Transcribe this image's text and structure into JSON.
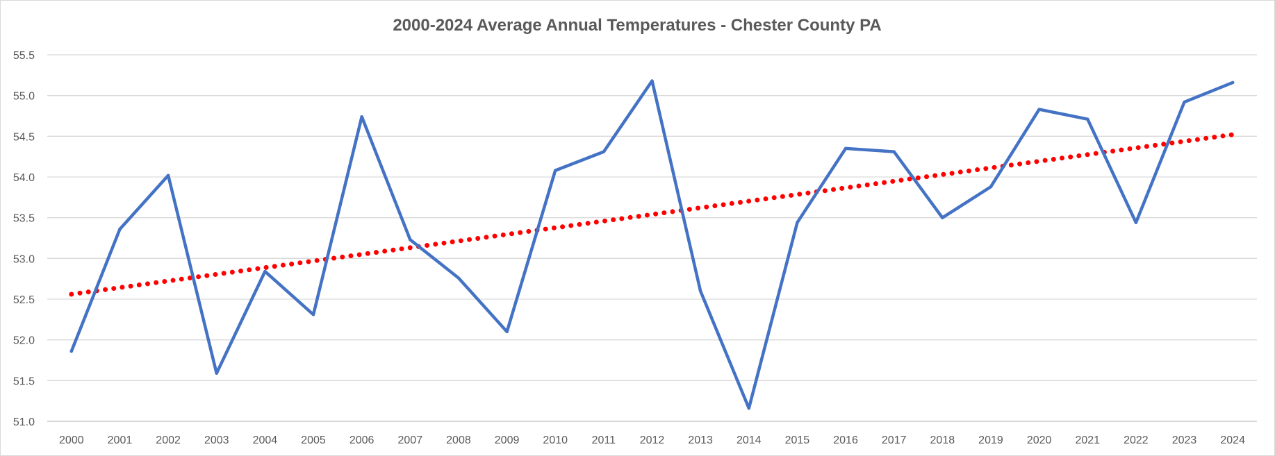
{
  "chart_data": {
    "type": "line",
    "title": "2000-2024 Average Annual Temperatures - Chester County PA",
    "xlabel": "",
    "ylabel": "",
    "categories": [
      "2000",
      "2001",
      "2002",
      "2003",
      "2004",
      "2005",
      "2006",
      "2007",
      "2008",
      "2009",
      "2010",
      "2011",
      "2012",
      "2013",
      "2014",
      "2015",
      "2016",
      "2017",
      "2018",
      "2019",
      "2020",
      "2021",
      "2022",
      "2023",
      "2024"
    ],
    "y_ticks": [
      "51.0",
      "51.5",
      "52.0",
      "52.5",
      "53.0",
      "53.5",
      "54.0",
      "54.5",
      "55.0",
      "55.5"
    ],
    "ylim": [
      51.0,
      55.5
    ],
    "grid": true,
    "legend": "none",
    "series": [
      {
        "style": "solid-line",
        "color": "#4472c4",
        "values": [
          51.86,
          53.36,
          54.02,
          51.59,
          52.84,
          52.31,
          54.74,
          53.23,
          52.76,
          52.1,
          54.08,
          54.31,
          55.18,
          52.6,
          51.16,
          53.44,
          54.35,
          54.31,
          53.5,
          53.88,
          54.83,
          54.71,
          53.44,
          54.92,
          55.16
        ]
      },
      {
        "style": "dotted-trendline",
        "color": "#ff0000",
        "start": 52.56,
        "end": 54.52
      }
    ]
  }
}
